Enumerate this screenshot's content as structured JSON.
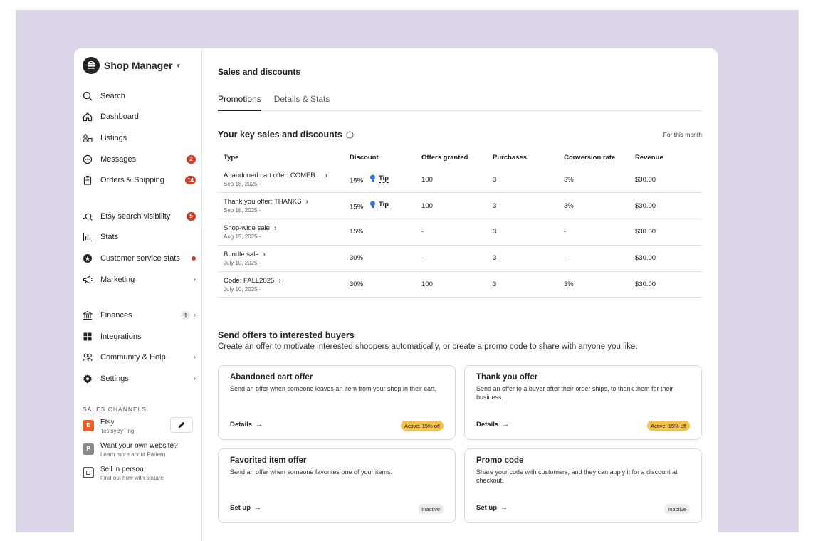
{
  "sidebar": {
    "brand_title": "Shop Manager",
    "nav_primary": [
      {
        "label": "Search"
      },
      {
        "label": "Dashboard"
      },
      {
        "label": "Listings"
      },
      {
        "label": "Messages",
        "badge": "2"
      },
      {
        "label": "Orders & Shipping",
        "badge": "14"
      }
    ],
    "nav_secondary": [
      {
        "label": "Etsy search visibility",
        "badge": "5"
      },
      {
        "label": "Stats"
      },
      {
        "label": "Customer service stats"
      },
      {
        "label": "Marketing"
      }
    ],
    "nav_tertiary": [
      {
        "label": "Finances",
        "badge": "1"
      },
      {
        "label": "Integrations"
      },
      {
        "label": "Community & Help"
      },
      {
        "label": "Settings"
      }
    ],
    "sales_channels_label": "SALES CHANNELS",
    "channels": [
      {
        "icon_letter": "E",
        "name": "Etsy",
        "sub": "TestsyByTing"
      },
      {
        "icon_letter": "P",
        "name": "Want your own website?",
        "sub": "Learn more about Pattern"
      },
      {
        "icon_letter": "",
        "name": "Sell in person",
        "sub": "Find out how with square"
      }
    ]
  },
  "main": {
    "title": "Sales and discounts",
    "tabs": [
      {
        "label": "Promotions",
        "active": true
      },
      {
        "label": "Details & Stats",
        "active": false
      }
    ],
    "key_title": "Your key sales and discounts",
    "key_period": "For this month",
    "table": {
      "headers": [
        "Type",
        "Discount",
        "Offers granted",
        "Purchases",
        "Conversion rate",
        "Revenue"
      ],
      "tip_label": "Tip",
      "rows": [
        {
          "type": "Abandoned cart offer: COMEB...",
          "date": "Sep 18, 2025 -",
          "discount": "15%",
          "tip": true,
          "offers": "100",
          "purchases": "3",
          "conversion": "3%",
          "revenue": "$30.00"
        },
        {
          "type": "Thank you offer: THANKS",
          "date": "Sep 18, 2025 -",
          "discount": "15%",
          "tip": true,
          "offers": "100",
          "purchases": "3",
          "conversion": "3%",
          "revenue": "$30.00"
        },
        {
          "type": "Shop-wide sale",
          "date": "Aug 15, 2025 -",
          "discount": "15%",
          "tip": false,
          "offers": "-",
          "purchases": "3",
          "conversion": "-",
          "revenue": "$30.00"
        },
        {
          "type": "Bundle sale",
          "date": "July 10, 2025 -",
          "discount": "30%",
          "tip": false,
          "offers": "-",
          "purchases": "3",
          "conversion": "-",
          "revenue": "$30.00"
        },
        {
          "type": "Code: FALL2025",
          "date": "July 10, 2025 -",
          "discount": "30%",
          "tip": false,
          "offers": "100",
          "purchases": "3",
          "conversion": "3%",
          "revenue": "$30.00"
        }
      ]
    },
    "offers_title": "Send offers to interested buyers",
    "offers_subtitle": "Create an offer to motivate interested shoppers automatically, or create a promo code to share with anyone you like.",
    "cards": [
      {
        "title": "Abandoned cart offer",
        "desc": "Send an offer when someone leaves an item from your shop in their cart.",
        "action": "Details",
        "status": "Active: 15% off",
        "status_kind": "active"
      },
      {
        "title": "Thank you offer",
        "desc": "Send an offer to a buyer after their order ships, to thank them for their business.",
        "action": "Details",
        "status": "Active: 15% off",
        "status_kind": "active"
      },
      {
        "title": "Favorited item offer",
        "desc": "Send an offer when someone favorites one of your items.",
        "action": "Set up",
        "status": "Inactive",
        "status_kind": "inactive"
      },
      {
        "title": "Promo code",
        "desc": "Share your code with customers, and they can apply it for a discount at checkout.",
        "action": "Set up",
        "status": "Inactive",
        "status_kind": "inactive"
      }
    ]
  },
  "colors": {
    "backdrop": "#dcd6e8",
    "badge_red": "#c6432a",
    "active_pill": "#f5c24b",
    "etsy_orange": "#e8612c"
  }
}
